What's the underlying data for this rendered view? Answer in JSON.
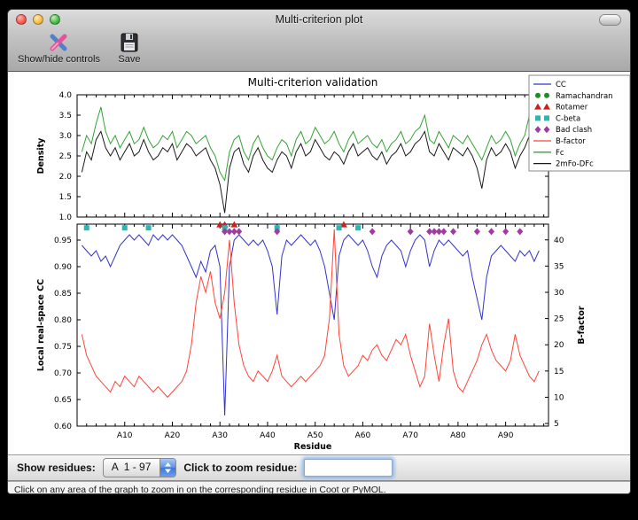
{
  "window": {
    "title": "Multi-criterion plot"
  },
  "toolbar": {
    "show_hide_label": "Show/hide controls",
    "save_label": "Save"
  },
  "figure": {
    "title": "Multi-criterion validation",
    "legend": [
      {
        "label": "CC",
        "glyph": "line",
        "color": "#3333cc"
      },
      {
        "label": "Ramachandran",
        "glyph": "circle",
        "color": "#1e8f1e"
      },
      {
        "label": "Rotamer",
        "glyph": "triangle",
        "color": "#cc2020"
      },
      {
        "label": "C-beta",
        "glyph": "square",
        "color": "#2cb5b5"
      },
      {
        "label": "Bad clash",
        "glyph": "diamond",
        "color": "#a03ca0"
      },
      {
        "label": "B-factor",
        "glyph": "line",
        "color": "#ff4438"
      },
      {
        "label": "Fc",
        "glyph": "line",
        "color": "#33a333"
      },
      {
        "label": "2mFo-DFc",
        "glyph": "line",
        "color": "#1a1a1a"
      }
    ]
  },
  "chart_data": [
    {
      "type": "line",
      "ylabel": "Density",
      "ylim": [
        1.0,
        4.0
      ],
      "yticks": [
        {
          "v": 1.0,
          "label": "1.0"
        },
        {
          "v": 1.5,
          "label": "1.5"
        },
        {
          "v": 2.0,
          "label": "2.0"
        },
        {
          "v": 2.5,
          "label": "2.5"
        },
        {
          "v": 3.0,
          "label": "3.0"
        },
        {
          "v": 3.5,
          "label": "3.5"
        },
        {
          "v": 4.0,
          "label": "4.0"
        }
      ],
      "xlim": [
        0,
        99
      ],
      "x": [
        1,
        2,
        3,
        4,
        5,
        6,
        7,
        8,
        9,
        10,
        11,
        12,
        13,
        14,
        15,
        16,
        17,
        18,
        19,
        20,
        21,
        22,
        23,
        24,
        25,
        26,
        27,
        28,
        29,
        30,
        31,
        32,
        33,
        34,
        35,
        36,
        37,
        38,
        39,
        40,
        41,
        42,
        43,
        44,
        45,
        46,
        47,
        48,
        49,
        50,
        51,
        52,
        53,
        54,
        55,
        56,
        57,
        58,
        59,
        60,
        61,
        62,
        63,
        64,
        65,
        66,
        67,
        68,
        69,
        70,
        71,
        72,
        73,
        74,
        75,
        76,
        77,
        78,
        79,
        80,
        81,
        82,
        83,
        84,
        85,
        86,
        87,
        88,
        89,
        90,
        91,
        92,
        93,
        94,
        95,
        96,
        97
      ],
      "series": [
        {
          "name": "Fc",
          "color": "#33a333",
          "axis": "left",
          "values": [
            2.6,
            3.0,
            2.8,
            3.3,
            3.7,
            3.1,
            2.8,
            3.0,
            2.7,
            2.9,
            3.1,
            2.8,
            2.9,
            3.2,
            2.9,
            2.7,
            2.8,
            3.0,
            2.9,
            3.1,
            2.7,
            2.9,
            3.1,
            3.0,
            2.8,
            2.9,
            3.0,
            2.7,
            2.5,
            2.1,
            1.9,
            2.6,
            2.9,
            3.0,
            2.6,
            2.4,
            2.8,
            3.0,
            2.7,
            2.5,
            2.4,
            2.7,
            2.9,
            2.8,
            2.5,
            2.9,
            3.1,
            2.8,
            2.9,
            3.2,
            3.0,
            2.8,
            2.9,
            3.1,
            2.8,
            2.6,
            2.9,
            3.1,
            2.8,
            2.9,
            3.0,
            2.8,
            2.7,
            2.9,
            2.6,
            2.8,
            2.9,
            3.1,
            2.8,
            2.9,
            3.1,
            3.2,
            3.5,
            2.9,
            2.8,
            3.1,
            2.9,
            2.7,
            3.0,
            2.9,
            2.8,
            3.0,
            2.8,
            2.6,
            2.4,
            2.7,
            3.0,
            2.8,
            2.9,
            3.1,
            2.9,
            2.5,
            2.8,
            3.0,
            3.5,
            3.0,
            3.2
          ]
        },
        {
          "name": "2mFo-DFc",
          "color": "#1a1a1a",
          "axis": "left",
          "values": [
            2.1,
            2.6,
            2.4,
            2.9,
            3.1,
            2.7,
            2.5,
            2.7,
            2.4,
            2.6,
            2.8,
            2.5,
            2.6,
            2.9,
            2.6,
            2.4,
            2.5,
            2.7,
            2.6,
            2.8,
            2.4,
            2.6,
            2.8,
            2.7,
            2.5,
            2.6,
            2.7,
            2.4,
            2.2,
            1.8,
            1.1,
            2.2,
            2.6,
            2.7,
            2.3,
            2.1,
            2.5,
            2.7,
            2.4,
            2.2,
            2.1,
            2.4,
            2.6,
            2.5,
            2.2,
            2.6,
            2.8,
            2.5,
            2.6,
            2.9,
            2.7,
            2.5,
            2.4,
            2.6,
            2.5,
            2.3,
            2.6,
            2.8,
            2.5,
            2.6,
            2.7,
            2.5,
            2.4,
            2.6,
            2.3,
            2.5,
            2.6,
            2.8,
            2.5,
            2.6,
            2.8,
            2.9,
            3.1,
            2.6,
            2.5,
            2.8,
            2.6,
            2.4,
            2.7,
            2.6,
            2.5,
            2.7,
            2.5,
            2.2,
            1.7,
            2.4,
            2.7,
            2.5,
            2.6,
            2.8,
            2.6,
            2.2,
            2.5,
            2.7,
            3.0,
            2.7,
            2.9
          ]
        }
      ]
    },
    {
      "type": "line",
      "xlabel": "Residue",
      "ylabel": "Local real-space CC",
      "ylabel_right": "B-factor",
      "ylim": [
        0.6,
        0.98
      ],
      "ylim_right": [
        4.5,
        43.0
      ],
      "yticks": [
        {
          "v": 0.6,
          "label": "0.60"
        },
        {
          "v": 0.65,
          "label": "0.65"
        },
        {
          "v": 0.7,
          "label": "0.70"
        },
        {
          "v": 0.75,
          "label": "0.75"
        },
        {
          "v": 0.8,
          "label": "0.80"
        },
        {
          "v": 0.85,
          "label": "0.85"
        },
        {
          "v": 0.9,
          "label": "0.90"
        },
        {
          "v": 0.95,
          "label": "0.95"
        }
      ],
      "yticks_right": [
        {
          "v": 5,
          "label": "5"
        },
        {
          "v": 10,
          "label": "10"
        },
        {
          "v": 15,
          "label": "15"
        },
        {
          "v": 20,
          "label": "20"
        },
        {
          "v": 25,
          "label": "25"
        },
        {
          "v": 30,
          "label": "30"
        },
        {
          "v": 35,
          "label": "35"
        },
        {
          "v": 40,
          "label": "40"
        }
      ],
      "xticks": [
        {
          "v": 10,
          "label": "A10"
        },
        {
          "v": 20,
          "label": "A20"
        },
        {
          "v": 30,
          "label": "A30"
        },
        {
          "v": 40,
          "label": "A40"
        },
        {
          "v": 50,
          "label": "A50"
        },
        {
          "v": 60,
          "label": "A60"
        },
        {
          "v": 70,
          "label": "A70"
        },
        {
          "v": 80,
          "label": "A80"
        },
        {
          "v": 90,
          "label": "A90"
        }
      ],
      "xlim": [
        0,
        99
      ],
      "x": [
        1,
        2,
        3,
        4,
        5,
        6,
        7,
        8,
        9,
        10,
        11,
        12,
        13,
        14,
        15,
        16,
        17,
        18,
        19,
        20,
        21,
        22,
        23,
        24,
        25,
        26,
        27,
        28,
        29,
        30,
        31,
        32,
        33,
        34,
        35,
        36,
        37,
        38,
        39,
        40,
        41,
        42,
        43,
        44,
        45,
        46,
        47,
        48,
        49,
        50,
        51,
        52,
        53,
        54,
        55,
        56,
        57,
        58,
        59,
        60,
        61,
        62,
        63,
        64,
        65,
        66,
        67,
        68,
        69,
        70,
        71,
        72,
        73,
        74,
        75,
        76,
        77,
        78,
        79,
        80,
        81,
        82,
        83,
        84,
        85,
        86,
        87,
        88,
        89,
        90,
        91,
        92,
        93,
        94,
        95,
        96,
        97
      ],
      "series": [
        {
          "name": "CC",
          "color": "#3333cc",
          "axis": "left",
          "values": [
            0.94,
            0.93,
            0.92,
            0.93,
            0.91,
            0.92,
            0.9,
            0.92,
            0.94,
            0.95,
            0.96,
            0.95,
            0.96,
            0.95,
            0.94,
            0.96,
            0.95,
            0.96,
            0.95,
            0.96,
            0.95,
            0.94,
            0.92,
            0.9,
            0.88,
            0.91,
            0.89,
            0.93,
            0.94,
            0.9,
            0.62,
            0.9,
            0.95,
            0.96,
            0.95,
            0.94,
            0.95,
            0.94,
            0.95,
            0.93,
            0.9,
            0.81,
            0.92,
            0.95,
            0.94,
            0.95,
            0.96,
            0.95,
            0.94,
            0.95,
            0.93,
            0.9,
            0.85,
            0.8,
            0.92,
            0.95,
            0.96,
            0.95,
            0.94,
            0.95,
            0.93,
            0.9,
            0.88,
            0.92,
            0.94,
            0.95,
            0.94,
            0.93,
            0.9,
            0.93,
            0.95,
            0.96,
            0.95,
            0.9,
            0.93,
            0.95,
            0.94,
            0.95,
            0.94,
            0.93,
            0.92,
            0.93,
            0.88,
            0.84,
            0.8,
            0.88,
            0.92,
            0.93,
            0.94,
            0.93,
            0.92,
            0.91,
            0.93,
            0.92,
            0.93,
            0.91,
            0.93
          ]
        },
        {
          "name": "B-factor",
          "color": "#ff4438",
          "axis": "right",
          "values": [
            22,
            18,
            16,
            14,
            13,
            12,
            11,
            13,
            12,
            14,
            13,
            12,
            14,
            13,
            12,
            11,
            12,
            11,
            10,
            11,
            12,
            13,
            15,
            20,
            28,
            33,
            30,
            34,
            28,
            25,
            30,
            40,
            28,
            20,
            16,
            14,
            13,
            15,
            14,
            13,
            15,
            18,
            14,
            13,
            12,
            13,
            14,
            13,
            14,
            15,
            16,
            18,
            25,
            42,
            22,
            16,
            14,
            15,
            16,
            18,
            17,
            19,
            20,
            18,
            17,
            19,
            21,
            20,
            22,
            18,
            15,
            12,
            14,
            24,
            18,
            13,
            20,
            25,
            15,
            12,
            11,
            13,
            15,
            17,
            20,
            22,
            19,
            17,
            16,
            15,
            17,
            22,
            18,
            16,
            14,
            13,
            15
          ]
        }
      ],
      "markers": [
        {
          "name": "Ramachandran",
          "shape": "circle",
          "color": "#1e8f1e",
          "y": 0.984,
          "residues": []
        },
        {
          "name": "Rotamer",
          "shape": "triangle",
          "color": "#cc2020",
          "y": 0.979,
          "residues": [
            30,
            31,
            33,
            56
          ]
        },
        {
          "name": "C-beta",
          "shape": "square",
          "color": "#2cb5b5",
          "y": 0.973,
          "residues": [
            2,
            10,
            15,
            31,
            42,
            55,
            59
          ]
        },
        {
          "name": "Bad clash",
          "shape": "diamond",
          "color": "#a03ca0",
          "y": 0.966,
          "residues": [
            31,
            32,
            33,
            34,
            42,
            62,
            70,
            74,
            75,
            76,
            77,
            79,
            84,
            87,
            90,
            93
          ]
        }
      ]
    }
  ],
  "controls": {
    "show_residues_label": "Show residues:",
    "chain_select_value": "A  1 - 97",
    "zoom_label": "Click to zoom residue:",
    "zoom_input_value": ""
  },
  "status_bar": {
    "text": "Click on any area of the graph to zoom in on the corresponding residue in Coot or PyMOL."
  }
}
